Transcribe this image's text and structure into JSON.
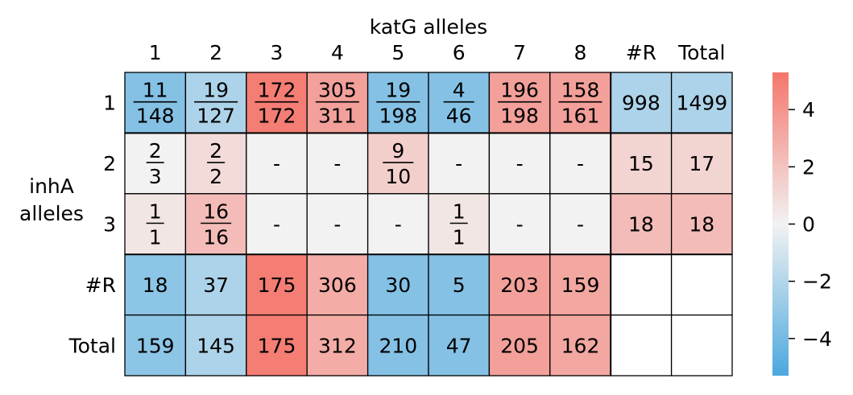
{
  "chart_data": {
    "type": "heatmap",
    "title": "katG alleles",
    "ylabel_lines": [
      "inhA",
      "alleles"
    ],
    "column_labels": [
      "1",
      "2",
      "3",
      "4",
      "5",
      "6",
      "7",
      "8",
      "#R",
      "Total"
    ],
    "row_labels": [
      "1",
      "2",
      "3",
      "#R",
      "Total"
    ],
    "cells": [
      [
        {
          "num": "11",
          "den": "148",
          "z": -3.5
        },
        {
          "num": "19",
          "den": "127",
          "z": -2.2
        },
        {
          "num": "172",
          "den": "172",
          "z": 5.0
        },
        {
          "num": "305",
          "den": "311",
          "z": 3.5
        },
        {
          "num": "19",
          "den": "198",
          "z": -3.5
        },
        {
          "num": "4",
          "den": "46",
          "z": -3.5
        },
        {
          "num": "196",
          "den": "198",
          "z": 3.5
        },
        {
          "num": "158",
          "den": "161",
          "z": 3.5
        },
        {
          "text": "998",
          "z": -2.2
        },
        {
          "text": "1499",
          "z": -2.2
        }
      ],
      [
        {
          "num": "2",
          "den": "3",
          "z": null
        },
        {
          "num": "2",
          "den": "2",
          "z": 1.0
        },
        {
          "text": "-",
          "z": null
        },
        {
          "text": "-",
          "z": null
        },
        {
          "num": "9",
          "den": "10",
          "z": 1.5
        },
        {
          "text": "-",
          "z": null
        },
        {
          "text": "-",
          "z": null
        },
        {
          "text": "-",
          "z": null
        },
        {
          "text": "15",
          "z": 1.3
        },
        {
          "text": "17",
          "z": 1.3
        }
      ],
      [
        {
          "num": "1",
          "den": "1",
          "z": 0.5
        },
        {
          "num": "16",
          "den": "16",
          "z": 2.3
        },
        {
          "text": "-",
          "z": null
        },
        {
          "text": "-",
          "z": null
        },
        {
          "text": "-",
          "z": null
        },
        {
          "num": "1",
          "den": "1",
          "z": 0.5
        },
        {
          "text": "-",
          "z": null
        },
        {
          "text": "-",
          "z": null
        },
        {
          "text": "18",
          "z": 2.3
        },
        {
          "text": "18",
          "z": 2.3
        }
      ],
      [
        {
          "text": "18",
          "z": -3.2
        },
        {
          "text": "37",
          "z": -2.2
        },
        {
          "text": "175",
          "z": 5.0
        },
        {
          "text": "306",
          "z": 3.0
        },
        {
          "text": "30",
          "z": -3.5
        },
        {
          "text": "5",
          "z": -3.5
        },
        {
          "text": "203",
          "z": 3.5
        },
        {
          "text": "159",
          "z": 3.2
        },
        {
          "text": "",
          "z": "blank"
        },
        {
          "text": "",
          "z": "blank"
        }
      ],
      [
        {
          "text": "159",
          "z": -3.2
        },
        {
          "text": "145",
          "z": -2.2
        },
        {
          "text": "175",
          "z": 5.0
        },
        {
          "text": "312",
          "z": 3.0
        },
        {
          "text": "210",
          "z": -3.5
        },
        {
          "text": "47",
          "z": -3.5
        },
        {
          "text": "205",
          "z": 3.5
        },
        {
          "text": "162",
          "z": 3.2
        },
        {
          "text": "",
          "z": "blank"
        },
        {
          "text": "",
          "z": "blank"
        }
      ]
    ],
    "colorbar": {
      "range": [
        -5.3,
        5.3
      ],
      "ticks": [
        {
          "value": 4,
          "label": "4"
        },
        {
          "value": 2,
          "label": "2"
        },
        {
          "value": 0,
          "label": "0"
        },
        {
          "value": -2,
          "label": "−2"
        },
        {
          "value": -4,
          "label": "−4"
        }
      ],
      "colors": {
        "negative": "#4ba8de",
        "center": "#f2f2f2",
        "positive": "#f4766c"
      }
    },
    "nan_color": "#f2f2f2",
    "blank_color": "#ffffff"
  }
}
